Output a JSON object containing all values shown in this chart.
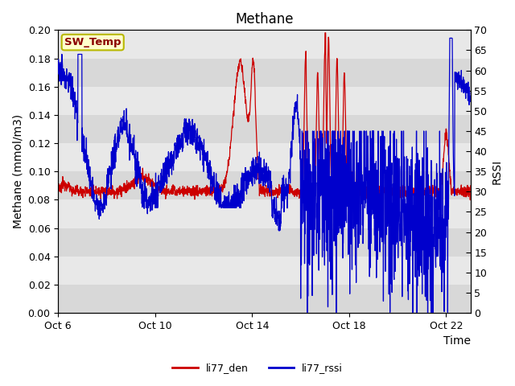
{
  "title": "Methane",
  "ylabel_left": "Methane (mmol/m3)",
  "ylabel_right": "RSSI",
  "xlabel": "Time",
  "ylim_left": [
    0.0,
    0.2
  ],
  "ylim_right": [
    0,
    70
  ],
  "yticks_left": [
    0.0,
    0.02,
    0.04,
    0.06,
    0.08,
    0.1,
    0.12,
    0.14,
    0.16,
    0.18,
    0.2
  ],
  "yticks_right": [
    0,
    5,
    10,
    15,
    20,
    25,
    30,
    35,
    40,
    45,
    50,
    55,
    60,
    65,
    70
  ],
  "xtick_labels": [
    "Oct 6",
    "Oct 10",
    "Oct 14",
    "Oct 18",
    "Oct 22"
  ],
  "xtick_positions": [
    0,
    4,
    8,
    12,
    16
  ],
  "bg_color_dark": "#d8d8d8",
  "bg_color_light": "#e8e8e8",
  "fig_color": "#ffffff",
  "line_red": "#cc0000",
  "line_blue": "#0000cc",
  "legend_labels": [
    "li77_den",
    "li77_rssi"
  ],
  "annotation_text": "SW_Temp",
  "annotation_color": "#8b0000",
  "annotation_bg": "#ffffcc",
  "annotation_border": "#b8b800",
  "grid_color": "#ffffff",
  "title_fontsize": 12,
  "label_fontsize": 10,
  "tick_fontsize": 9,
  "legend_fontsize": 9
}
